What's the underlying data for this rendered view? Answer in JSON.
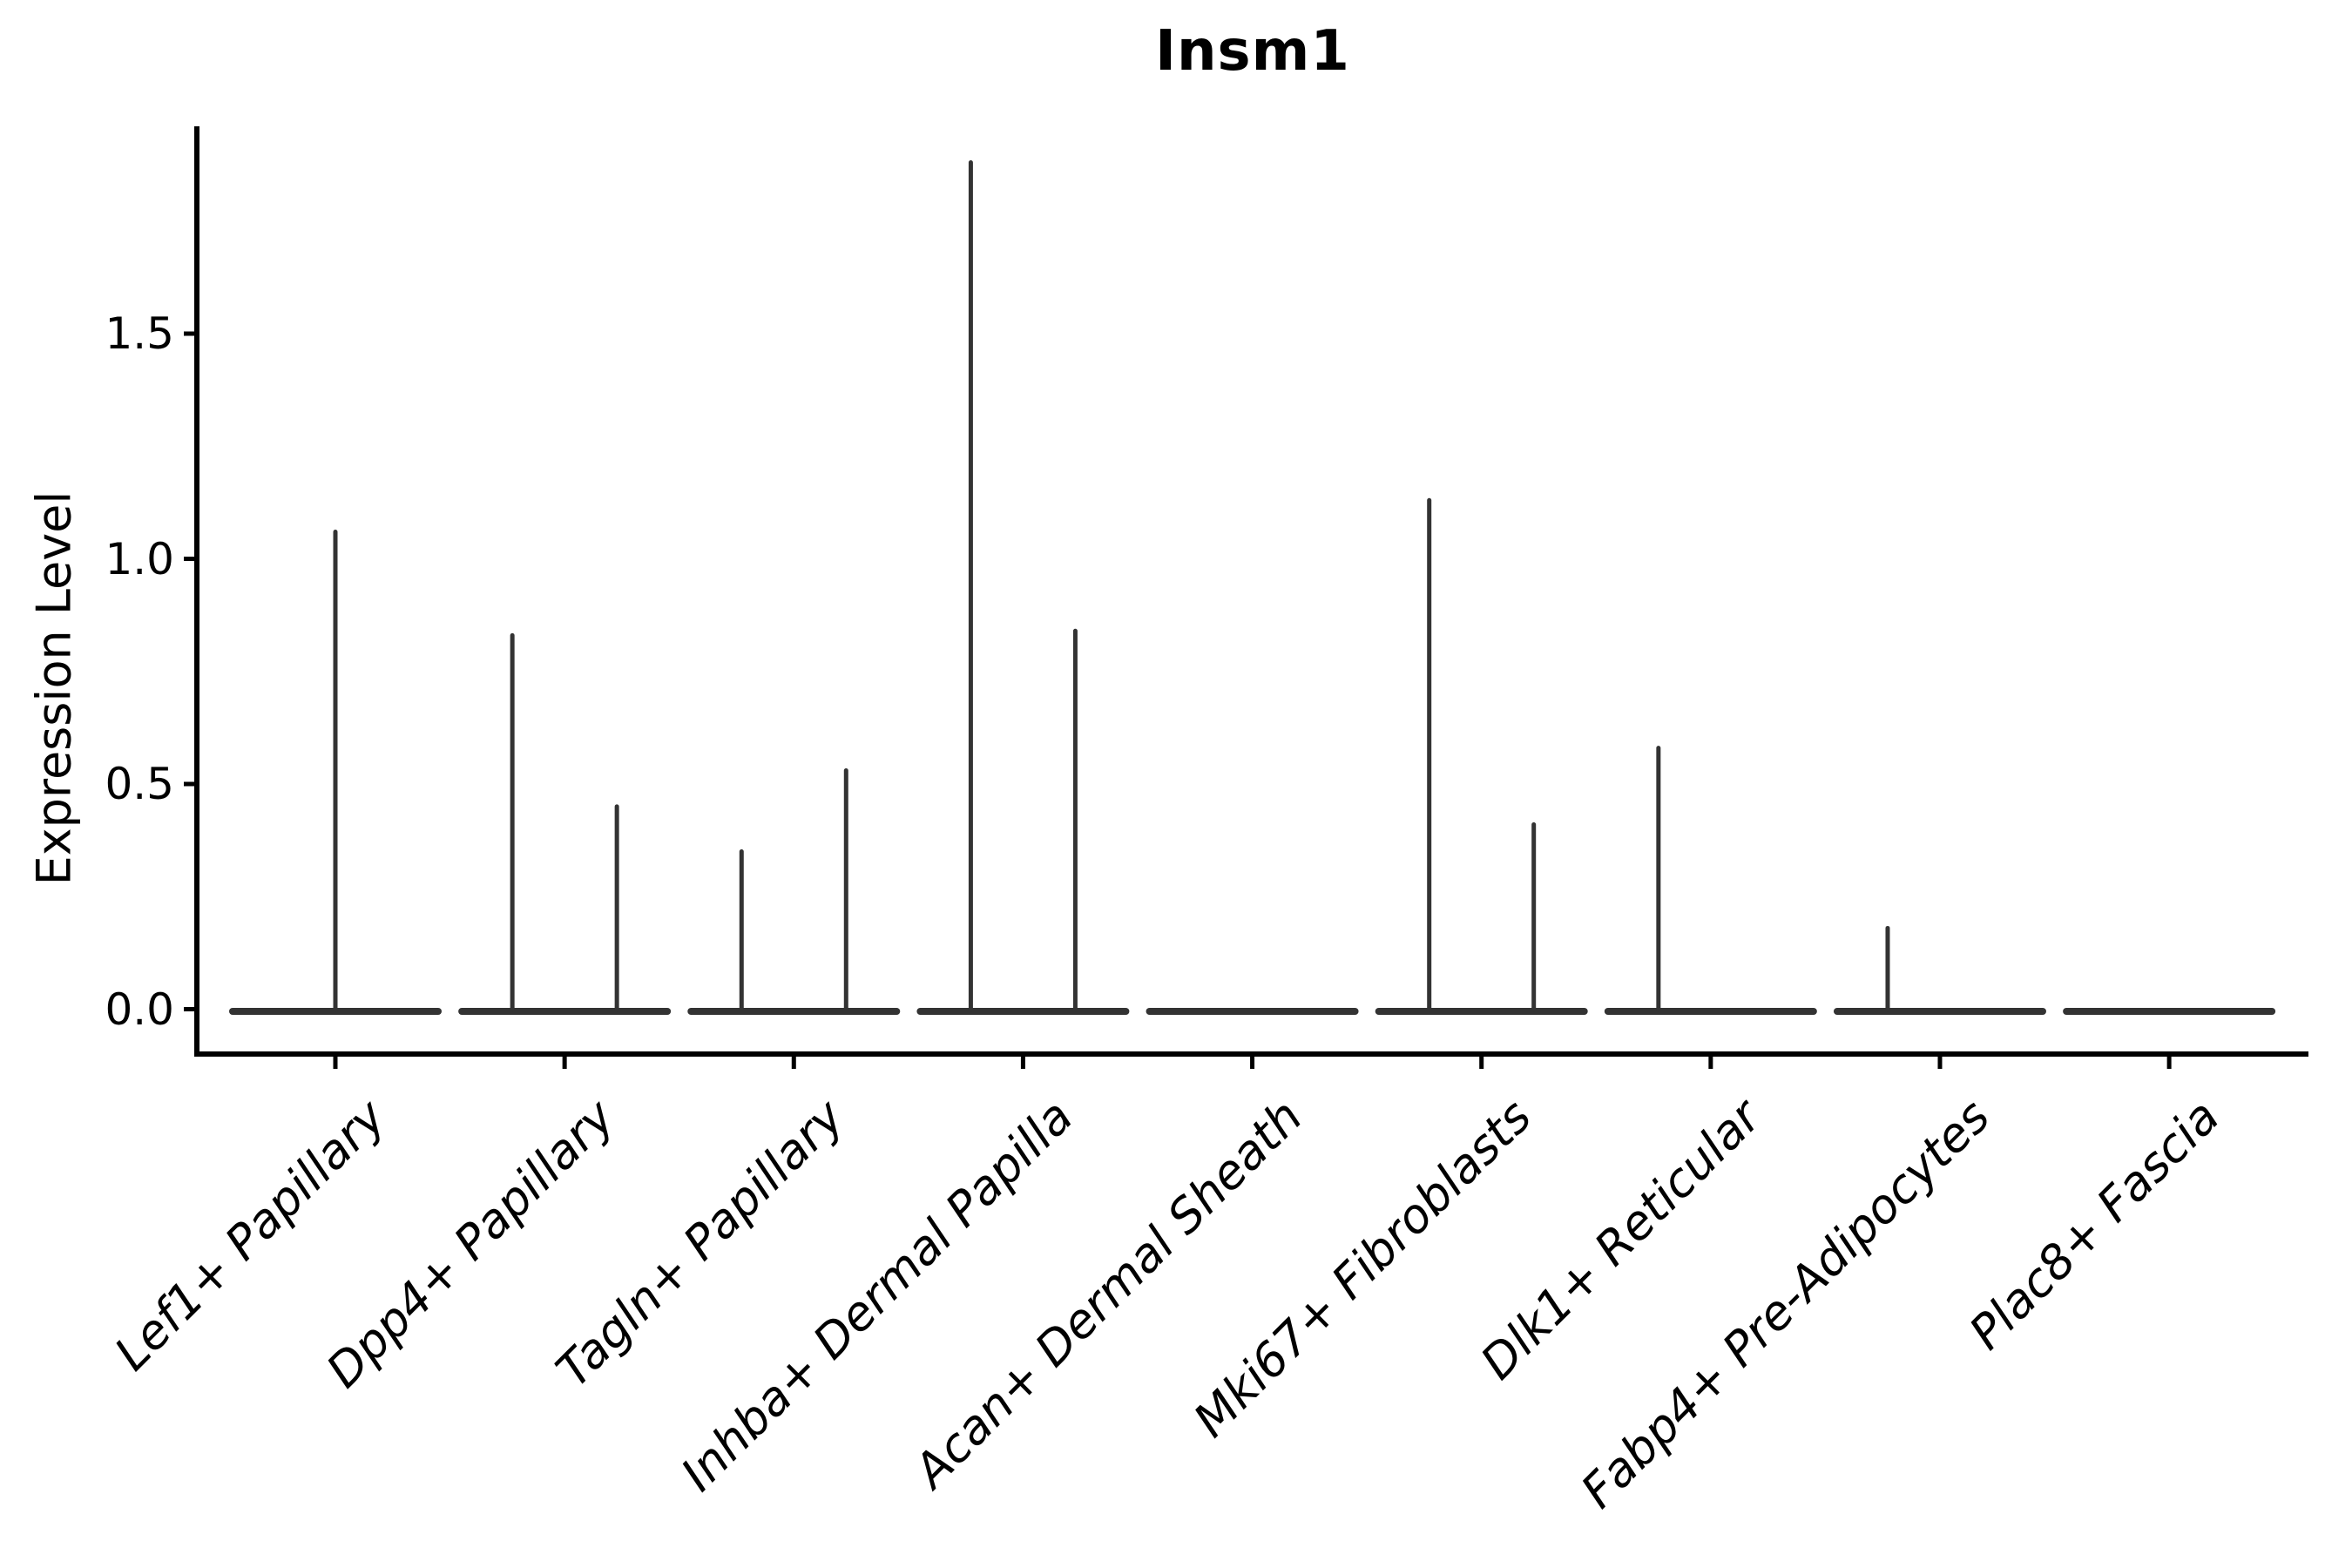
{
  "chart_data": {
    "type": "violin",
    "title": "Insm1",
    "ylabel": "Expression Level",
    "xlabel": "",
    "grid": false,
    "legend": null,
    "ylim": [
      -0.1,
      1.96
    ],
    "ytick_values": [
      0.0,
      0.5,
      1.0,
      1.5
    ],
    "ytick_labels": [
      "0.0",
      "0.5",
      "1.0",
      "1.5"
    ],
    "categories": [
      "Lef1+ Papillary",
      "Dpp4+ Papillary",
      "Tagln+ Papillary",
      "Inhba+ Dermal Papilla",
      "Acan+ Dermal Sheath",
      "Mki67+ Fibroblasts",
      "Dlk1+ Reticular",
      "Fabp4+ Pre-Adipocytes",
      "Plac8+ Fascia"
    ],
    "violins": [
      {
        "category": "Lef1+ Papillary",
        "spikes": [
          {
            "side": "center",
            "max_expression": 1.06
          }
        ]
      },
      {
        "category": "Dpp4+ Papillary",
        "spikes": [
          {
            "side": "left",
            "max_expression": 0.83
          },
          {
            "side": "right",
            "max_expression": 0.45
          }
        ]
      },
      {
        "category": "Tagln+ Papillary",
        "spikes": [
          {
            "side": "left",
            "max_expression": 0.35
          },
          {
            "side": "right",
            "max_expression": 0.53
          }
        ]
      },
      {
        "category": "Inhba+ Dermal Papilla",
        "spikes": [
          {
            "side": "left",
            "max_expression": 1.88
          },
          {
            "side": "right",
            "max_expression": 0.84
          }
        ]
      },
      {
        "category": "Acan+ Dermal Sheath",
        "spikes": []
      },
      {
        "category": "Mki67+ Fibroblasts",
        "spikes": [
          {
            "side": "left",
            "max_expression": 1.13
          },
          {
            "side": "right",
            "max_expression": 0.41
          }
        ]
      },
      {
        "category": "Dlk1+ Reticular",
        "spikes": [
          {
            "side": "left",
            "max_expression": 0.58
          }
        ]
      },
      {
        "category": "Fabp4+ Pre-Adipocytes",
        "spikes": [
          {
            "side": "left",
            "max_expression": 0.18
          }
        ]
      },
      {
        "category": "Plac8+ Fascia",
        "spikes": []
      }
    ],
    "colors": {
      "violin": "#333333",
      "axis": "#000000",
      "text": "#000000",
      "background": "#ffffff"
    }
  }
}
